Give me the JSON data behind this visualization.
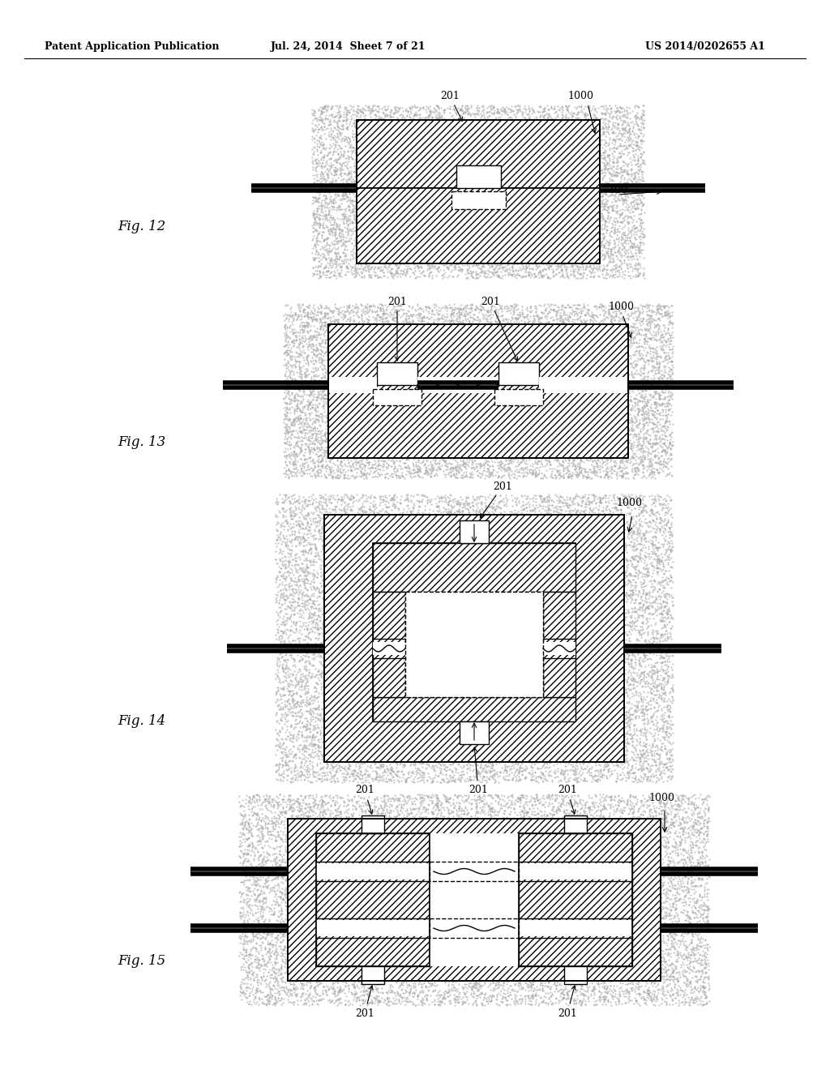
{
  "background_color": "#ffffff",
  "header_left": "Patent Application Publication",
  "header_center": "Jul. 24, 2014  Sheet 7 of 21",
  "header_right": "US 2014/0202655 A1",
  "line_color": "#000000"
}
